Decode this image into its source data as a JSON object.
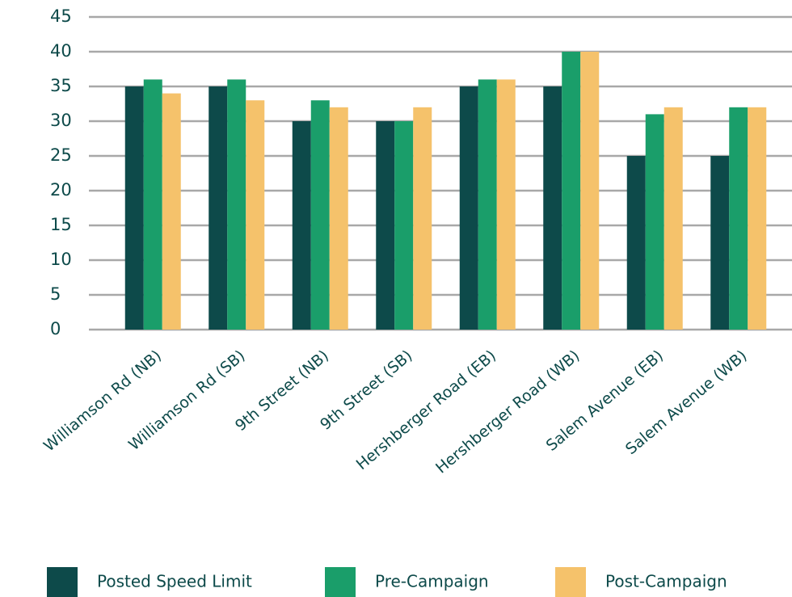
{
  "chart_data": {
    "type": "bar",
    "categories": [
      "Williamson Rd (NB)",
      "Williamson Rd (SB)",
      "9th Street (NB)",
      "9th Street (SB)",
      "Hershberger Road (EB)",
      "Hershberger Road (WB)",
      "Salem Avenue (EB)",
      "Salem Avenue (WB)"
    ],
    "series": [
      {
        "name": "Posted Speed Limit",
        "color": "#0d4a4a",
        "values": [
          35,
          35,
          30,
          30,
          35,
          35,
          25,
          25
        ]
      },
      {
        "name": "Pre-Campaign",
        "color": "#1a9e6a",
        "values": [
          36,
          36,
          33,
          30,
          36,
          40,
          31,
          32
        ]
      },
      {
        "name": "Post-Campaign",
        "color": "#f5c26b",
        "values": [
          34,
          33,
          32,
          32,
          36,
          40,
          32,
          32
        ]
      }
    ],
    "ylim": [
      0,
      45
    ],
    "yticks": [
      0,
      5,
      10,
      15,
      20,
      25,
      30,
      35,
      40,
      45
    ],
    "grid": true,
    "legend": "bottom"
  }
}
